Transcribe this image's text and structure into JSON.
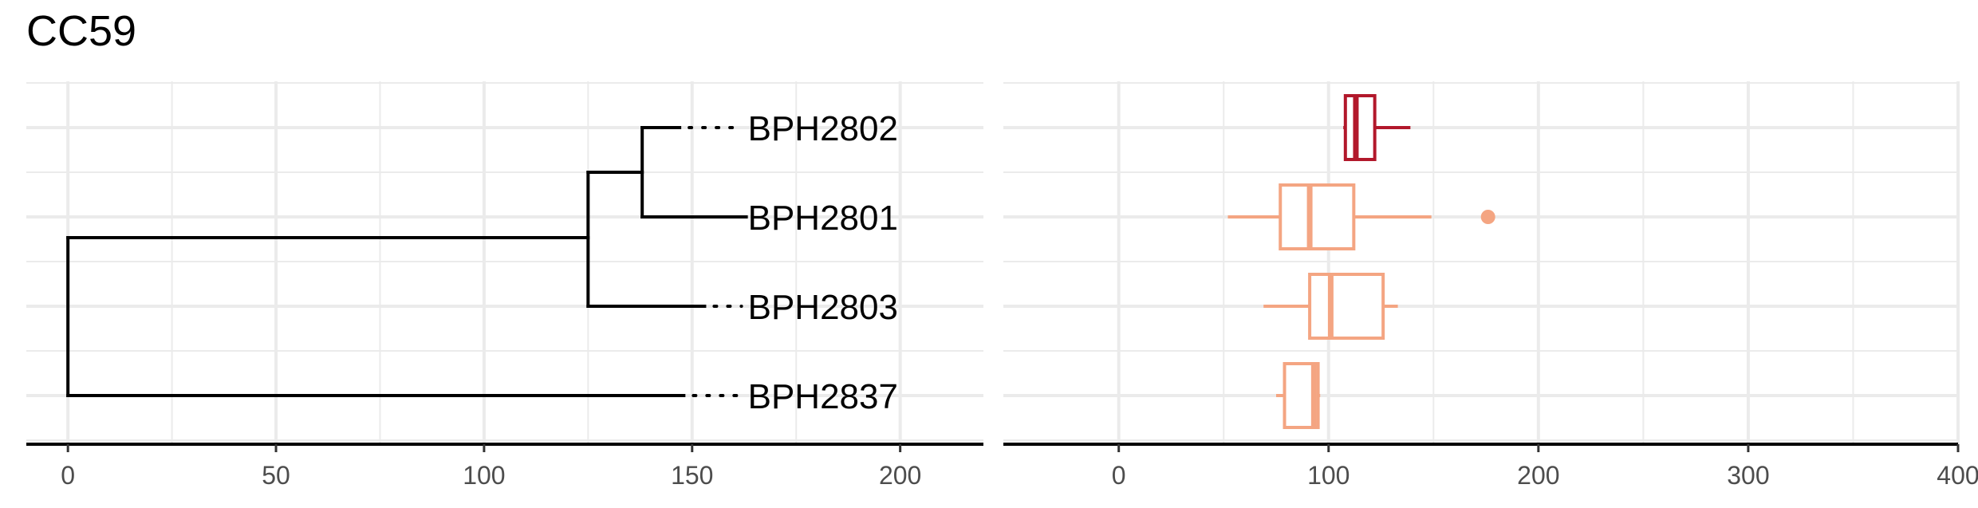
{
  "title": "CC59",
  "chart_data": [
    {
      "type": "dendrogram",
      "xlim": [
        -10,
        220
      ],
      "x_ticks": [
        0,
        50,
        100,
        150,
        200
      ],
      "tips": [
        {
          "label": "BPH2802",
          "branch_end": 147
        },
        {
          "label": "BPH2801",
          "branch_end": 163
        },
        {
          "label": "BPH2803",
          "branch_end": 153
        },
        {
          "label": "BPH2837",
          "branch_end": 148
        }
      ],
      "label_x": 163,
      "nodes": {
        "root": 0,
        "inner": 125,
        "cherry": 138
      }
    },
    {
      "type": "boxplot",
      "orientation": "horizontal",
      "xlim": [
        -55,
        400
      ],
      "x_ticks": [
        0,
        100,
        200,
        300,
        400
      ],
      "tick_labels": [
        "0",
        "100",
        "200",
        "300",
        "400"
      ],
      "grid": true,
      "boxes": [
        {
          "category": "BPH2802",
          "min": 107,
          "q1": 108,
          "median": 113,
          "q3": 122,
          "max": 139,
          "outliers": [],
          "color": "#b2182b"
        },
        {
          "category": "BPH2801",
          "min": 52,
          "q1": 77,
          "median": 91,
          "q3": 112,
          "max": 149,
          "outliers": [
            176
          ],
          "color": "#f4a582"
        },
        {
          "category": "BPH2803",
          "min": 69,
          "q1": 91,
          "median": 101,
          "q3": 126,
          "max": 133,
          "outliers": [],
          "color": "#f4a582"
        },
        {
          "category": "BPH2837",
          "min": 75,
          "q1": 79,
          "median": 93,
          "q3": 95,
          "max": 96,
          "outliers": [],
          "color": "#f4a582"
        }
      ]
    }
  ]
}
